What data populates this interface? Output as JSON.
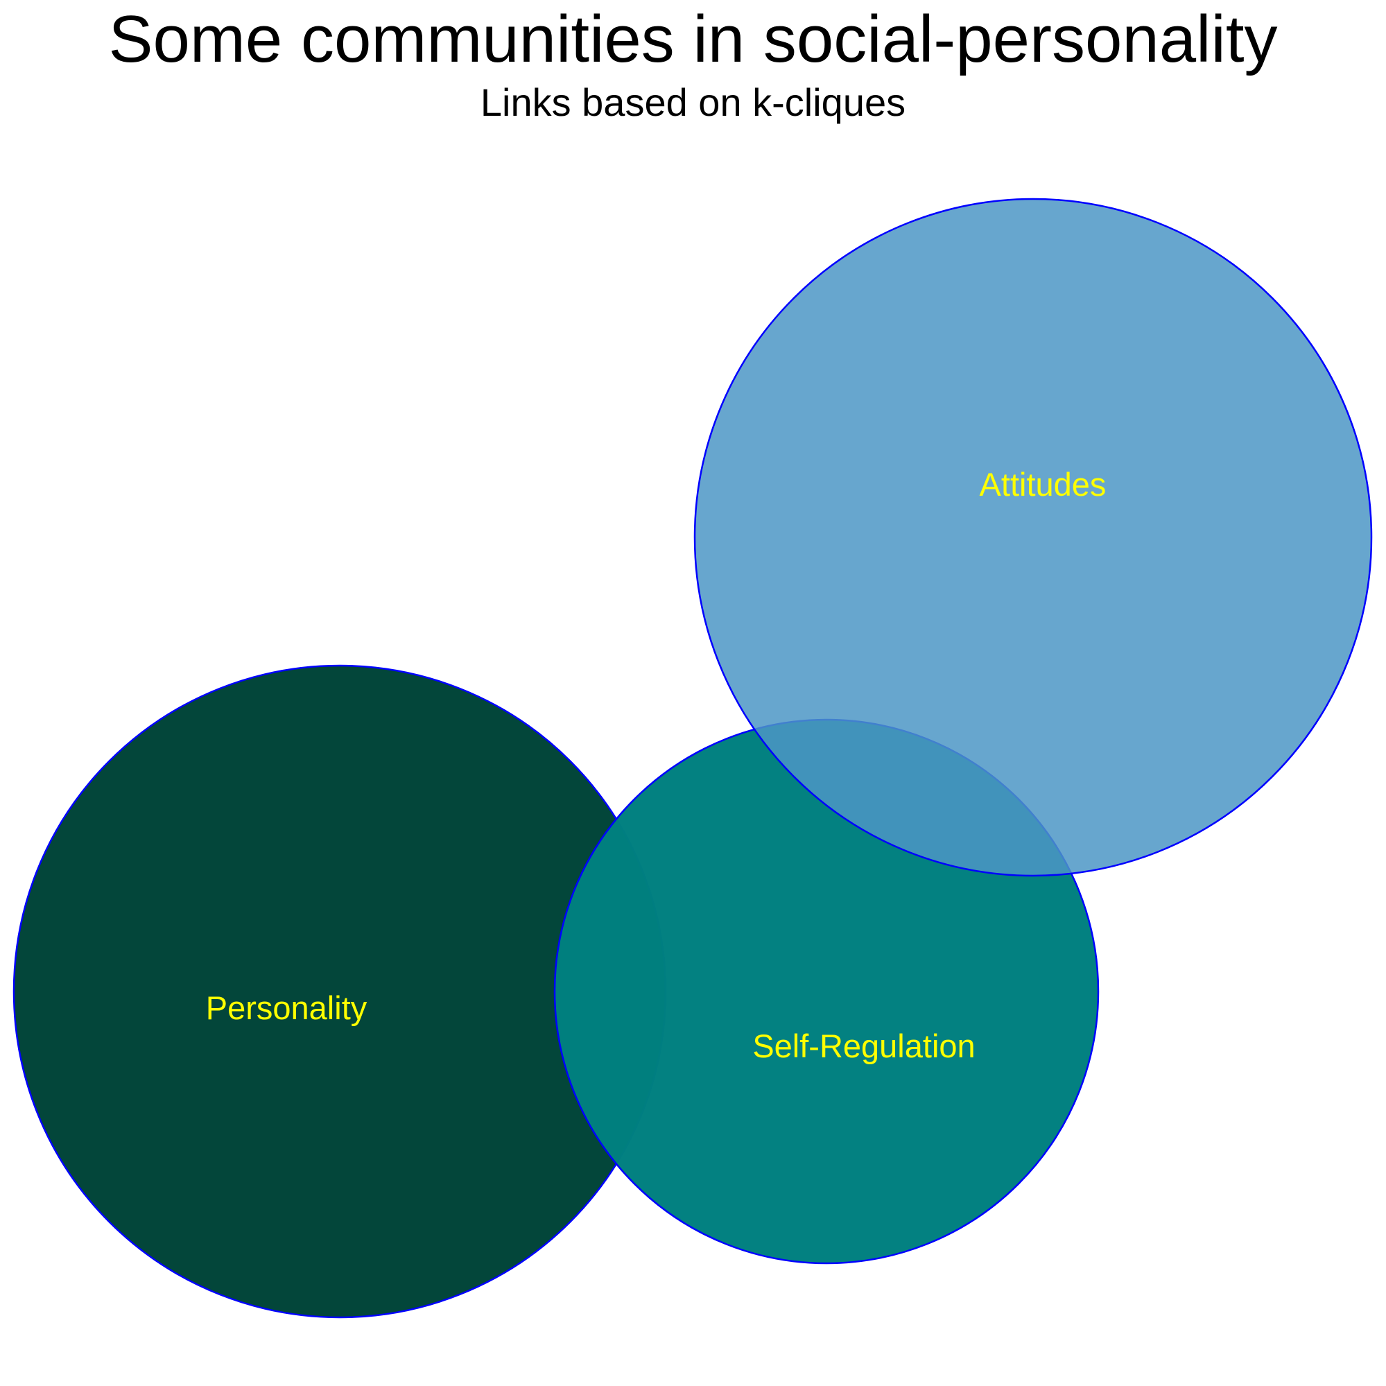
{
  "title": "Some communities in social-personality",
  "subtitle": "Links based on k-cliques",
  "communities": [
    {
      "id": "personality",
      "label": "Personality",
      "fill": "#03463A",
      "opacity": 1.0
    },
    {
      "id": "self-regulation",
      "label": "Self-Regulation",
      "fill": "#008080",
      "opacity": 0.99
    },
    {
      "id": "attitudes",
      "label": "Attitudes",
      "fill": "#4C97C5",
      "opacity": 0.85
    }
  ],
  "colors": {
    "stroke": "#0000FF",
    "label": "#FFFF00",
    "background": "#FFFFFF"
  }
}
